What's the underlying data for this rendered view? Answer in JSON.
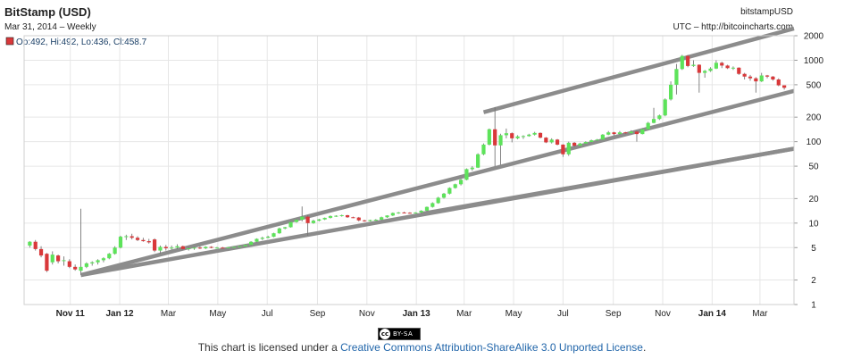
{
  "header": {
    "title": "BitStamp (USD)",
    "subtitle": "Mar 31, 2014 – Weekly",
    "source": "bitstampUSD",
    "credit": "UTC – http://bitcoincharts.com",
    "ohlc": "Op:492, Hi:492, Lo:436, Cl:458.7"
  },
  "footer": {
    "prefix": "This chart is licensed under a ",
    "link": "Creative Commons Attribution-ShareAlike 3.0 Unported License",
    "suffix": ".",
    "badge_text": "BY-SA",
    "badge_cc": "cc"
  },
  "colors": {
    "up": "#5de35a",
    "down": "#d9383a",
    "trendline": "#8c8c8c",
    "grid": "#e6e6e6"
  },
  "chart_data": {
    "type": "candlestick",
    "scale": "log",
    "ylim": [
      1,
      2000
    ],
    "yticks": [
      1,
      2,
      5,
      10,
      20,
      50,
      100,
      200,
      500,
      1000,
      2000
    ],
    "x_tick_labels": [
      {
        "label": "Nov 11",
        "date": "2011-11-01",
        "bold": true
      },
      {
        "label": "Jan 12",
        "date": "2012-01-01",
        "bold": true
      },
      {
        "label": "Mar",
        "date": "2012-03-01"
      },
      {
        "label": "May",
        "date": "2012-05-01"
      },
      {
        "label": "Jul",
        "date": "2012-07-01"
      },
      {
        "label": "Sep",
        "date": "2012-09-01"
      },
      {
        "label": "Nov",
        "date": "2012-11-01"
      },
      {
        "label": "Jan 13",
        "date": "2013-01-01",
        "bold": true
      },
      {
        "label": "Mar",
        "date": "2013-03-01"
      },
      {
        "label": "May",
        "date": "2013-05-01"
      },
      {
        "label": "Jul",
        "date": "2013-07-01"
      },
      {
        "label": "Sep",
        "date": "2013-09-01"
      },
      {
        "label": "Nov",
        "date": "2013-11-01"
      },
      {
        "label": "Jan 14",
        "date": "2014-01-01",
        "bold": true
      },
      {
        "label": "Mar",
        "date": "2014-03-01"
      }
    ],
    "x_range": [
      "2011-09-05",
      "2014-04-12"
    ],
    "candles": [
      {
        "d": "2011-09-12",
        "o": 5.3,
        "h": 6.0,
        "l": 5.0,
        "c": 5.9
      },
      {
        "d": "2011-09-19",
        "o": 5.9,
        "h": 6.2,
        "l": 4.6,
        "c": 4.8
      },
      {
        "d": "2011-09-26",
        "o": 4.8,
        "h": 5.2,
        "l": 3.8,
        "c": 4.0
      },
      {
        "d": "2011-10-03",
        "o": 4.2,
        "h": 4.3,
        "l": 2.5,
        "c": 2.6
      },
      {
        "d": "2011-10-10",
        "o": 3.3,
        "h": 4.5,
        "l": 3.1,
        "c": 4.1
      },
      {
        "d": "2011-10-17",
        "o": 4.0,
        "h": 4.1,
        "l": 3.2,
        "c": 3.4
      },
      {
        "d": "2011-10-24",
        "o": 3.5,
        "h": 3.9,
        "l": 3.0,
        "c": 3.5
      },
      {
        "d": "2011-10-31",
        "o": 3.4,
        "h": 3.6,
        "l": 2.8,
        "c": 2.9
      },
      {
        "d": "2011-11-07",
        "o": 2.9,
        "h": 3.1,
        "l": 2.6,
        "c": 2.7
      },
      {
        "d": "2011-11-14",
        "o": 2.6,
        "h": 15.0,
        "l": 2.3,
        "c": 2.9
      },
      {
        "d": "2011-11-21",
        "o": 2.9,
        "h": 3.3,
        "l": 2.8,
        "c": 3.2
      },
      {
        "d": "2011-11-28",
        "o": 3.2,
        "h": 3.4,
        "l": 3.0,
        "c": 3.3
      },
      {
        "d": "2011-12-05",
        "o": 3.3,
        "h": 3.6,
        "l": 3.1,
        "c": 3.5
      },
      {
        "d": "2011-12-12",
        "o": 3.5,
        "h": 3.8,
        "l": 3.3,
        "c": 3.7
      },
      {
        "d": "2011-12-19",
        "o": 3.7,
        "h": 4.3,
        "l": 3.6,
        "c": 4.2
      },
      {
        "d": "2011-12-26",
        "o": 4.2,
        "h": 5.2,
        "l": 4.1,
        "c": 5.0
      },
      {
        "d": "2012-01-02",
        "o": 5.0,
        "h": 7.0,
        "l": 4.9,
        "c": 6.8
      },
      {
        "d": "2012-01-09",
        "o": 6.8,
        "h": 7.2,
        "l": 6.2,
        "c": 6.9
      },
      {
        "d": "2012-01-16",
        "o": 6.9,
        "h": 7.4,
        "l": 6.3,
        "c": 6.6
      },
      {
        "d": "2012-01-23",
        "o": 6.6,
        "h": 6.9,
        "l": 6.0,
        "c": 6.2
      },
      {
        "d": "2012-01-30",
        "o": 6.2,
        "h": 6.6,
        "l": 5.9,
        "c": 6.0
      },
      {
        "d": "2012-02-06",
        "o": 6.0,
        "h": 6.4,
        "l": 5.6,
        "c": 5.8
      },
      {
        "d": "2012-02-13",
        "o": 6.3,
        "h": 6.5,
        "l": 4.4,
        "c": 4.6
      },
      {
        "d": "2012-02-20",
        "o": 4.6,
        "h": 5.3,
        "l": 4.2,
        "c": 5.1
      },
      {
        "d": "2012-02-27",
        "o": 5.1,
        "h": 5.4,
        "l": 4.6,
        "c": 4.9
      },
      {
        "d": "2012-03-05",
        "o": 4.9,
        "h": 5.3,
        "l": 4.7,
        "c": 5.0
      },
      {
        "d": "2012-03-12",
        "o": 5.0,
        "h": 5.5,
        "l": 4.8,
        "c": 5.2
      },
      {
        "d": "2012-03-19",
        "o": 5.2,
        "h": 5.3,
        "l": 4.7,
        "c": 4.8
      },
      {
        "d": "2012-03-26",
        "o": 4.8,
        "h": 5.1,
        "l": 4.6,
        "c": 4.9
      },
      {
        "d": "2012-04-02",
        "o": 4.9,
        "h": 5.1,
        "l": 4.7,
        "c": 5.0
      },
      {
        "d": "2012-04-09",
        "o": 5.0,
        "h": 5.2,
        "l": 4.8,
        "c": 4.9
      },
      {
        "d": "2012-04-16",
        "o": 4.9,
        "h": 5.2,
        "l": 4.8,
        "c": 5.1
      },
      {
        "d": "2012-04-23",
        "o": 5.1,
        "h": 5.2,
        "l": 4.9,
        "c": 5.0
      },
      {
        "d": "2012-04-30",
        "o": 5.0,
        "h": 5.1,
        "l": 4.9,
        "c": 5.0
      },
      {
        "d": "2012-05-07",
        "o": 5.0,
        "h": 5.1,
        "l": 4.9,
        "c": 4.95
      },
      {
        "d": "2012-05-14",
        "o": 4.95,
        "h": 5.1,
        "l": 4.9,
        "c": 5.05
      },
      {
        "d": "2012-05-21",
        "o": 5.05,
        "h": 5.2,
        "l": 5.0,
        "c": 5.1
      },
      {
        "d": "2012-05-28",
        "o": 5.1,
        "h": 5.3,
        "l": 5.0,
        "c": 5.2
      },
      {
        "d": "2012-06-04",
        "o": 5.2,
        "h": 5.5,
        "l": 5.1,
        "c": 5.4
      },
      {
        "d": "2012-06-11",
        "o": 5.4,
        "h": 6.0,
        "l": 5.3,
        "c": 5.9
      },
      {
        "d": "2012-06-18",
        "o": 5.9,
        "h": 6.5,
        "l": 5.8,
        "c": 6.4
      },
      {
        "d": "2012-06-25",
        "o": 6.4,
        "h": 6.8,
        "l": 6.2,
        "c": 6.6
      },
      {
        "d": "2012-07-02",
        "o": 6.6,
        "h": 7.0,
        "l": 6.5,
        "c": 6.8
      },
      {
        "d": "2012-07-09",
        "o": 6.8,
        "h": 7.6,
        "l": 6.7,
        "c": 7.5
      },
      {
        "d": "2012-07-16",
        "o": 7.5,
        "h": 8.8,
        "l": 7.4,
        "c": 8.6
      },
      {
        "d": "2012-07-23",
        "o": 8.6,
        "h": 9.0,
        "l": 8.4,
        "c": 8.9
      },
      {
        "d": "2012-07-30",
        "o": 8.9,
        "h": 10.5,
        "l": 8.8,
        "c": 10.3
      },
      {
        "d": "2012-08-06",
        "o": 10.3,
        "h": 11.2,
        "l": 10.1,
        "c": 11.0
      },
      {
        "d": "2012-08-13",
        "o": 11.0,
        "h": 16.0,
        "l": 10.5,
        "c": 12.0
      },
      {
        "d": "2012-08-20",
        "o": 12.0,
        "h": 12.5,
        "l": 7.0,
        "c": 10.0
      },
      {
        "d": "2012-08-27",
        "o": 10.0,
        "h": 11.0,
        "l": 9.8,
        "c": 10.7
      },
      {
        "d": "2012-09-03",
        "o": 10.7,
        "h": 11.3,
        "l": 10.5,
        "c": 11.1
      },
      {
        "d": "2012-09-10",
        "o": 11.1,
        "h": 11.7,
        "l": 10.9,
        "c": 11.6
      },
      {
        "d": "2012-09-17",
        "o": 11.6,
        "h": 12.4,
        "l": 11.4,
        "c": 12.2
      },
      {
        "d": "2012-09-24",
        "o": 12.2,
        "h": 12.5,
        "l": 11.9,
        "c": 12.3
      },
      {
        "d": "2012-10-01",
        "o": 12.3,
        "h": 12.7,
        "l": 12.0,
        "c": 12.5
      },
      {
        "d": "2012-10-08",
        "o": 12.5,
        "h": 12.6,
        "l": 11.6,
        "c": 11.8
      },
      {
        "d": "2012-10-15",
        "o": 11.8,
        "h": 12.0,
        "l": 11.5,
        "c": 11.7
      },
      {
        "d": "2012-10-22",
        "o": 11.7,
        "h": 11.9,
        "l": 10.5,
        "c": 10.8
      },
      {
        "d": "2012-10-29",
        "o": 10.8,
        "h": 11.0,
        "l": 10.4,
        "c": 10.6
      },
      {
        "d": "2012-11-05",
        "o": 10.6,
        "h": 11.0,
        "l": 10.5,
        "c": 10.9
      },
      {
        "d": "2012-11-12",
        "o": 10.9,
        "h": 11.2,
        "l": 10.7,
        "c": 11.0
      },
      {
        "d": "2012-11-19",
        "o": 11.0,
        "h": 12.0,
        "l": 10.9,
        "c": 11.8
      },
      {
        "d": "2012-11-26",
        "o": 11.8,
        "h": 12.5,
        "l": 11.6,
        "c": 12.4
      },
      {
        "d": "2012-12-03",
        "o": 12.4,
        "h": 13.5,
        "l": 12.2,
        "c": 13.3
      },
      {
        "d": "2012-12-10",
        "o": 13.3,
        "h": 13.7,
        "l": 13.0,
        "c": 13.5
      },
      {
        "d": "2012-12-17",
        "o": 13.5,
        "h": 13.8,
        "l": 13.2,
        "c": 13.4
      },
      {
        "d": "2012-12-24",
        "o": 13.4,
        "h": 13.6,
        "l": 13.1,
        "c": 13.3
      },
      {
        "d": "2012-12-31",
        "o": 13.3,
        "h": 13.6,
        "l": 13.1,
        "c": 13.5
      },
      {
        "d": "2013-01-07",
        "o": 13.5,
        "h": 14.4,
        "l": 13.3,
        "c": 14.2
      },
      {
        "d": "2013-01-14",
        "o": 14.2,
        "h": 16.0,
        "l": 14.0,
        "c": 15.8
      },
      {
        "d": "2013-01-21",
        "o": 15.8,
        "h": 18.0,
        "l": 15.5,
        "c": 17.6
      },
      {
        "d": "2013-01-28",
        "o": 17.6,
        "h": 21.0,
        "l": 17.3,
        "c": 20.5
      },
      {
        "d": "2013-02-04",
        "o": 20.5,
        "h": 23.5,
        "l": 20.0,
        "c": 23.0
      },
      {
        "d": "2013-02-11",
        "o": 23.0,
        "h": 27.5,
        "l": 22.5,
        "c": 27.0
      },
      {
        "d": "2013-02-18",
        "o": 27.0,
        "h": 30.5,
        "l": 26.5,
        "c": 30.0
      },
      {
        "d": "2013-02-25",
        "o": 30.0,
        "h": 35.0,
        "l": 29.0,
        "c": 34.0
      },
      {
        "d": "2013-03-04",
        "o": 34.0,
        "h": 47.0,
        "l": 33.5,
        "c": 46.0
      },
      {
        "d": "2013-03-11",
        "o": 46.0,
        "h": 50.0,
        "l": 44.0,
        "c": 48.0
      },
      {
        "d": "2013-03-18",
        "o": 48.0,
        "h": 72.0,
        "l": 47.5,
        "c": 70.0
      },
      {
        "d": "2013-03-25",
        "o": 70.0,
        "h": 95.0,
        "l": 68.0,
        "c": 92.0
      },
      {
        "d": "2013-04-01",
        "o": 92.0,
        "h": 145.0,
        "l": 90.0,
        "c": 142.0
      },
      {
        "d": "2013-04-08",
        "o": 142.0,
        "h": 266.0,
        "l": 50.0,
        "c": 90.0
      },
      {
        "d": "2013-04-15",
        "o": 90.0,
        "h": 125.0,
        "l": 52.0,
        "c": 120.0
      },
      {
        "d": "2013-04-22",
        "o": 120.0,
        "h": 145.0,
        "l": 110.0,
        "c": 127.0
      },
      {
        "d": "2013-04-29",
        "o": 127.0,
        "h": 130.0,
        "l": 98.0,
        "c": 110.0
      },
      {
        "d": "2013-05-06",
        "o": 110.0,
        "h": 120.0,
        "l": 107.0,
        "c": 116.0
      },
      {
        "d": "2013-05-13",
        "o": 116.0,
        "h": 120.0,
        "l": 108.0,
        "c": 117.0
      },
      {
        "d": "2013-05-20",
        "o": 117.0,
        "h": 125.0,
        "l": 115.0,
        "c": 122.0
      },
      {
        "d": "2013-05-27",
        "o": 122.0,
        "h": 132.0,
        "l": 119.0,
        "c": 128.0
      },
      {
        "d": "2013-06-03",
        "o": 128.0,
        "h": 130.0,
        "l": 110.0,
        "c": 112.0
      },
      {
        "d": "2013-06-10",
        "o": 112.0,
        "h": 114.0,
        "l": 96.0,
        "c": 98.0
      },
      {
        "d": "2013-06-17",
        "o": 98.0,
        "h": 110.0,
        "l": 95.0,
        "c": 106.0
      },
      {
        "d": "2013-06-24",
        "o": 106.0,
        "h": 108.0,
        "l": 90.0,
        "c": 92.0
      },
      {
        "d": "2013-07-01",
        "o": 92.0,
        "h": 93.0,
        "l": 65.0,
        "c": 70.0
      },
      {
        "d": "2013-07-08",
        "o": 70.0,
        "h": 100.0,
        "l": 67.0,
        "c": 97.0
      },
      {
        "d": "2013-07-15",
        "o": 97.0,
        "h": 99.0,
        "l": 86.0,
        "c": 89.0
      },
      {
        "d": "2013-07-22",
        "o": 89.0,
        "h": 97.0,
        "l": 87.0,
        "c": 95.0
      },
      {
        "d": "2013-07-29",
        "o": 95.0,
        "h": 101.0,
        "l": 94.0,
        "c": 99.0
      },
      {
        "d": "2013-08-05",
        "o": 99.0,
        "h": 106.0,
        "l": 98.0,
        "c": 104.0
      },
      {
        "d": "2013-08-12",
        "o": 104.0,
        "h": 108.0,
        "l": 101.0,
        "c": 106.0
      },
      {
        "d": "2013-08-19",
        "o": 106.0,
        "h": 124.0,
        "l": 105.0,
        "c": 122.0
      },
      {
        "d": "2013-08-26",
        "o": 122.0,
        "h": 135.0,
        "l": 120.0,
        "c": 130.0
      },
      {
        "d": "2013-09-02",
        "o": 130.0,
        "h": 132.0,
        "l": 119.0,
        "c": 124.0
      },
      {
        "d": "2013-09-09",
        "o": 124.0,
        "h": 135.0,
        "l": 122.0,
        "c": 130.0
      },
      {
        "d": "2013-09-16",
        "o": 130.0,
        "h": 132.0,
        "l": 124.0,
        "c": 127.0
      },
      {
        "d": "2013-09-23",
        "o": 127.0,
        "h": 138.0,
        "l": 126.0,
        "c": 133.0
      },
      {
        "d": "2013-09-30",
        "o": 133.0,
        "h": 136.0,
        "l": 100.0,
        "c": 124.0
      },
      {
        "d": "2013-10-07",
        "o": 124.0,
        "h": 145.0,
        "l": 123.0,
        "c": 142.0
      },
      {
        "d": "2013-10-14",
        "o": 142.0,
        "h": 175.0,
        "l": 140.0,
        "c": 170.0
      },
      {
        "d": "2013-10-21",
        "o": 170.0,
        "h": 260.0,
        "l": 168.0,
        "c": 190.0
      },
      {
        "d": "2013-10-28",
        "o": 190.0,
        "h": 215.0,
        "l": 185.0,
        "c": 210.0
      },
      {
        "d": "2013-11-04",
        "o": 210.0,
        "h": 340.0,
        "l": 205.0,
        "c": 330.0
      },
      {
        "d": "2013-11-11",
        "o": 330.0,
        "h": 550.0,
        "l": 320.0,
        "c": 500.0
      },
      {
        "d": "2013-11-18",
        "o": 500.0,
        "h": 900.0,
        "l": 380.0,
        "c": 780.0
      },
      {
        "d": "2013-11-25",
        "o": 780.0,
        "h": 1165.0,
        "l": 760.0,
        "c": 1130.0
      },
      {
        "d": "2013-12-02",
        "o": 1130.0,
        "h": 1163.0,
        "l": 820.0,
        "c": 850.0
      },
      {
        "d": "2013-12-09",
        "o": 850.0,
        "h": 1000.0,
        "l": 830.0,
        "c": 880.0
      },
      {
        "d": "2013-12-16",
        "o": 880.0,
        "h": 890.0,
        "l": 400.0,
        "c": 700.0
      },
      {
        "d": "2013-12-23",
        "o": 700.0,
        "h": 760.0,
        "l": 610.0,
        "c": 740.0
      },
      {
        "d": "2013-12-30",
        "o": 740.0,
        "h": 820.0,
        "l": 720.0,
        "c": 790.0
      },
      {
        "d": "2014-01-06",
        "o": 790.0,
        "h": 1000.0,
        "l": 780.0,
        "c": 930.0
      },
      {
        "d": "2014-01-13",
        "o": 930.0,
        "h": 960.0,
        "l": 800.0,
        "c": 860.0
      },
      {
        "d": "2014-01-20",
        "o": 860.0,
        "h": 880.0,
        "l": 780.0,
        "c": 800.0
      },
      {
        "d": "2014-01-27",
        "o": 800.0,
        "h": 840.0,
        "l": 760.0,
        "c": 810.0
      },
      {
        "d": "2014-02-03",
        "o": 810.0,
        "h": 820.0,
        "l": 660.0,
        "c": 680.0
      },
      {
        "d": "2014-02-10",
        "o": 680.0,
        "h": 700.0,
        "l": 580.0,
        "c": 630.0
      },
      {
        "d": "2014-02-17",
        "o": 630.0,
        "h": 660.0,
        "l": 560.0,
        "c": 600.0
      },
      {
        "d": "2014-02-24",
        "o": 600.0,
        "h": 620.0,
        "l": 400.0,
        "c": 550.0
      },
      {
        "d": "2014-03-03",
        "o": 550.0,
        "h": 700.0,
        "l": 540.0,
        "c": 650.0
      },
      {
        "d": "2014-03-10",
        "o": 650.0,
        "h": 660.0,
        "l": 600.0,
        "c": 630.0
      },
      {
        "d": "2014-03-17",
        "o": 630.0,
        "h": 640.0,
        "l": 560.0,
        "c": 580.0
      },
      {
        "d": "2014-03-24",
        "o": 580.0,
        "h": 600.0,
        "l": 480.0,
        "c": 492.0
      },
      {
        "d": "2014-03-31",
        "o": 492.0,
        "h": 492.0,
        "l": 436.0,
        "c": 458.7
      }
    ],
    "trendlines": [
      {
        "from": {
          "d": "2011-11-14",
          "v": 2.3
        },
        "to": {
          "d": "2014-04-12",
          "v": 420.0
        }
      },
      {
        "from": {
          "d": "2011-11-14",
          "v": 2.3
        },
        "to": {
          "d": "2014-04-12",
          "v": 82.0
        }
      },
      {
        "from": {
          "d": "2013-01-07",
          "v": 13.0
        },
        "to": {
          "d": "2014-04-12",
          "v": 82.0
        }
      },
      {
        "from": {
          "d": "2013-03-25",
          "v": 230.0
        },
        "to": {
          "d": "2014-04-12",
          "v": 2450.0
        }
      }
    ]
  }
}
